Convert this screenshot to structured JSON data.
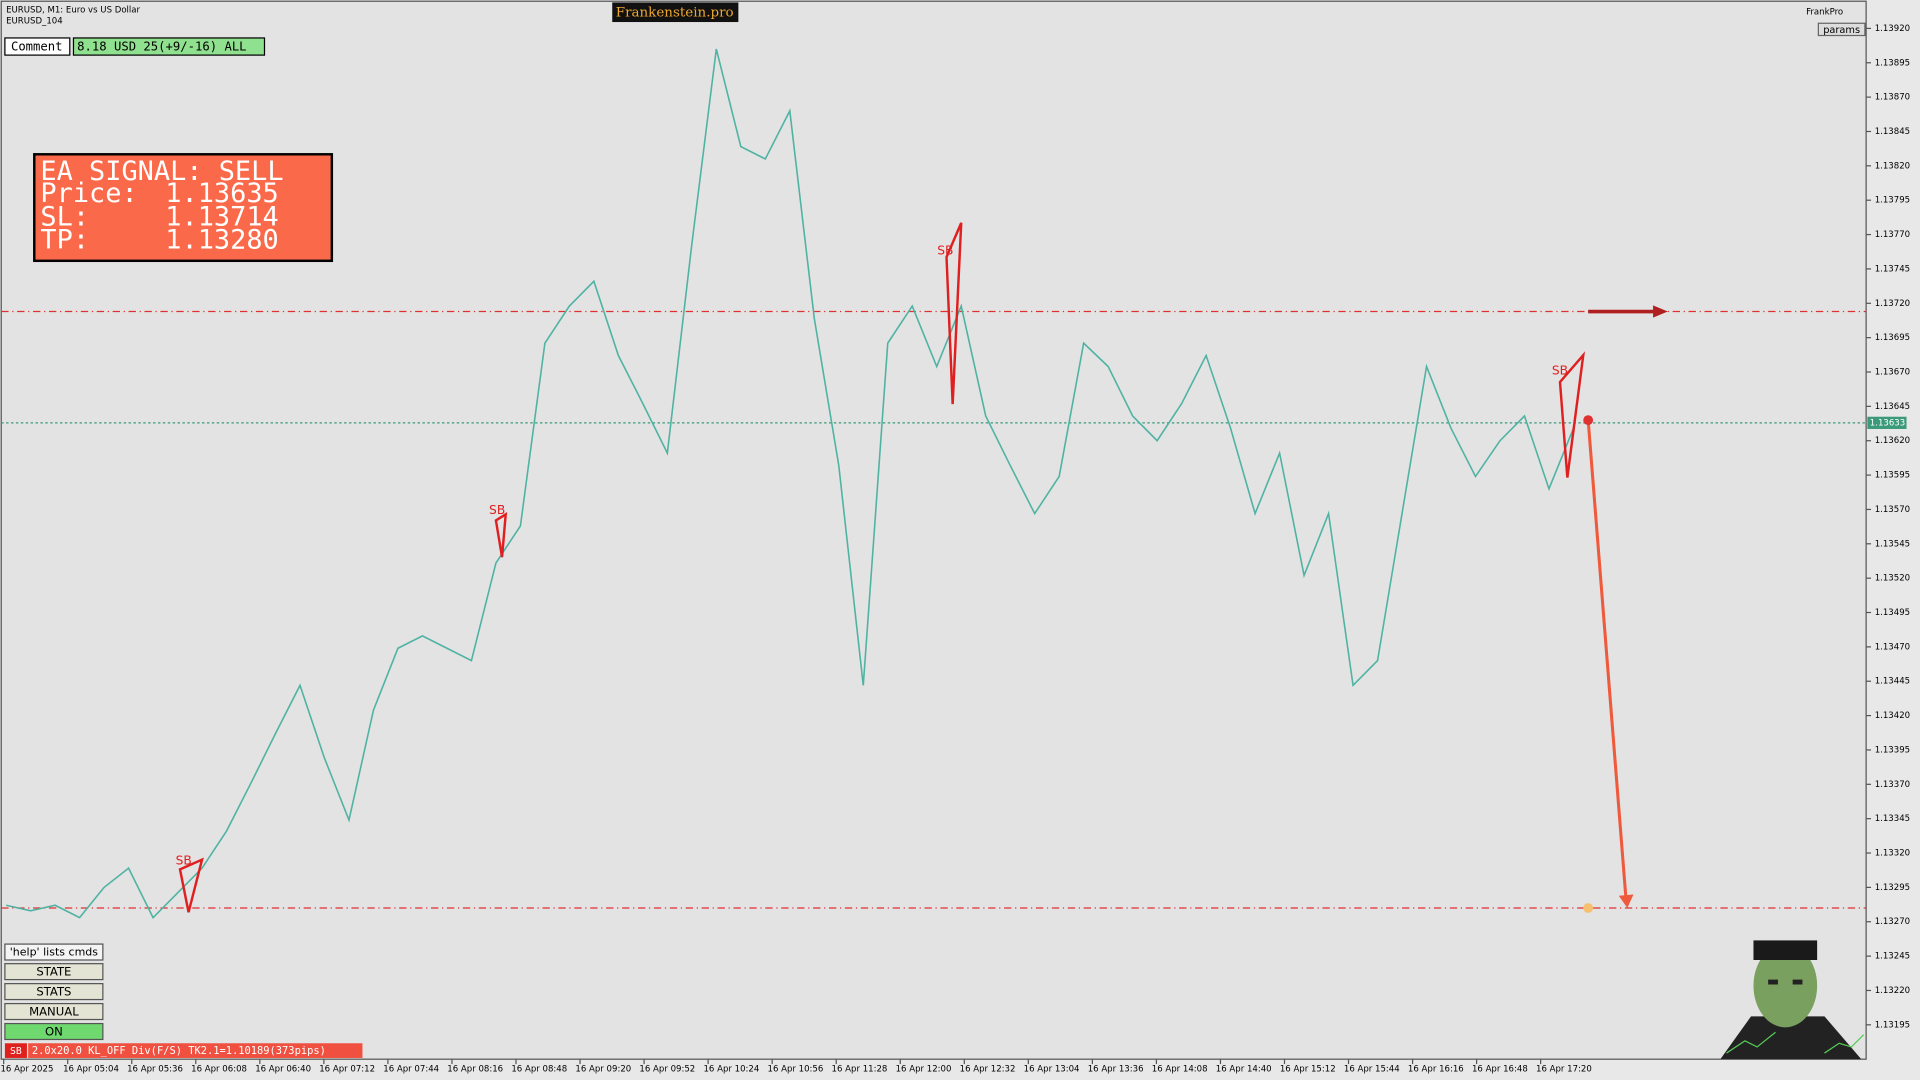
{
  "header": {
    "symbol": "EURUSD, M1:  Euro vs US Dollar",
    "account": "EURUSD_104",
    "brand": "Frankenstein.pro",
    "comment_label": "Comment",
    "comment_value": "8.18 USD 25(+9/-16) ALL",
    "profile": "FrankPro",
    "params": "params"
  },
  "signal": {
    "heading": "EA SIGNAL: SELL",
    "price_label": "Price:",
    "price": 1.13635,
    "sl_label": "SL:",
    "sl": 1.13714,
    "tp_label": "TP:",
    "tp": {
      "value": 1.1328,
      "label": "1.13280"
    }
  },
  "controls": {
    "help": "'help' lists cmds",
    "buttons": [
      "STATE",
      "STATS",
      "MANUAL",
      "ON"
    ]
  },
  "status": {
    "tag": "SB",
    "text": "2.0x20.0 KL_OFF Div(F/S) TK2.1=1.10189(373pips)"
  },
  "chart_data": {
    "type": "line",
    "color": "#4fb3a3",
    "ylim": [
      1.1317,
      1.13938
    ],
    "yticks": [
      1.13195,
      {
        "value": 1.1322,
        "label": "1.13220"
      },
      1.13245,
      {
        "value": 1.1327,
        "label": "1.13270"
      },
      1.13295,
      {
        "value": 1.1332,
        "label": "1.13320"
      },
      1.13345,
      {
        "value": 1.1337,
        "label": "1.13370"
      },
      1.13395,
      {
        "value": 1.1342,
        "label": "1.13420"
      },
      1.13445,
      {
        "value": 1.1347,
        "label": "1.13470"
      },
      1.13495,
      {
        "value": 1.1352,
        "label": "1.13520"
      },
      1.13545,
      {
        "value": 1.1357,
        "label": "1.13570"
      },
      1.13595,
      {
        "value": 1.1362,
        "label": "1.13620"
      },
      1.13645,
      {
        "value": 1.1367,
        "label": "1.13670"
      },
      1.13695,
      {
        "value": 1.1372,
        "label": "1.13720"
      },
      1.13745,
      {
        "value": 1.1377,
        "label": "1.13770"
      },
      1.13795,
      {
        "value": 1.1382,
        "label": "1.13820"
      },
      1.13845,
      {
        "value": 1.1387,
        "label": "1.13870"
      },
      1.13895,
      {
        "value": 1.1392,
        "label": "1.13920"
      }
    ],
    "x_labels": [
      "16 Apr 2025",
      "16 Apr 05:04",
      "16 Apr 05:36",
      "16 Apr 06:08",
      "16 Apr 06:40",
      "16 Apr 07:12",
      "16 Apr 07:44",
      "16 Apr 08:16",
      "16 Apr 08:48",
      "16 Apr 09:20",
      "16 Apr 09:52",
      "16 Apr 10:24",
      "16 Apr 10:56",
      "16 Apr 11:28",
      "16 Apr 12:00",
      "16 Apr 12:32",
      "16 Apr 13:04",
      "16 Apr 13:36",
      "16 Apr 14:08",
      "16 Apr 14:40",
      "16 Apr 15:12",
      "16 Apr 15:44",
      "16 Apr 16:16",
      "16 Apr 16:48",
      "16 Apr 17:20"
    ],
    "values": [
      1.13282,
      1.13278,
      1.13282,
      1.13273,
      1.13295,
      1.13309,
      1.13273,
      1.13291,
      1.13309,
      1.13336,
      1.13371,
      1.13407,
      1.13442,
      1.13389,
      1.13344,
      1.13424,
      1.13469,
      1.13478,
      1.13469,
      1.1346,
      1.13531,
      1.13558,
      1.13691,
      1.13718,
      1.13736,
      1.13682,
      1.13647,
      1.13611,
      1.13763,
      1.13905,
      1.13834,
      1.13825,
      1.1386,
      1.13709,
      1.13602,
      1.13442,
      1.13691,
      1.13718,
      1.13674,
      1.13718,
      1.13638,
      1.13602,
      1.13567,
      1.13594,
      1.13691,
      1.13674,
      1.13638,
      1.1362,
      1.13647,
      1.13682,
      1.13629,
      1.13567,
      1.13611,
      1.13522,
      1.13567,
      1.13442,
      1.1346,
      1.13567,
      1.13674,
      1.13629,
      1.13594,
      1.1362,
      1.13638,
      1.13585,
      1.13629
    ],
    "bid": 1.13633,
    "sb_markers": [
      "SB",
      "SB",
      "SB",
      "SB"
    ]
  }
}
